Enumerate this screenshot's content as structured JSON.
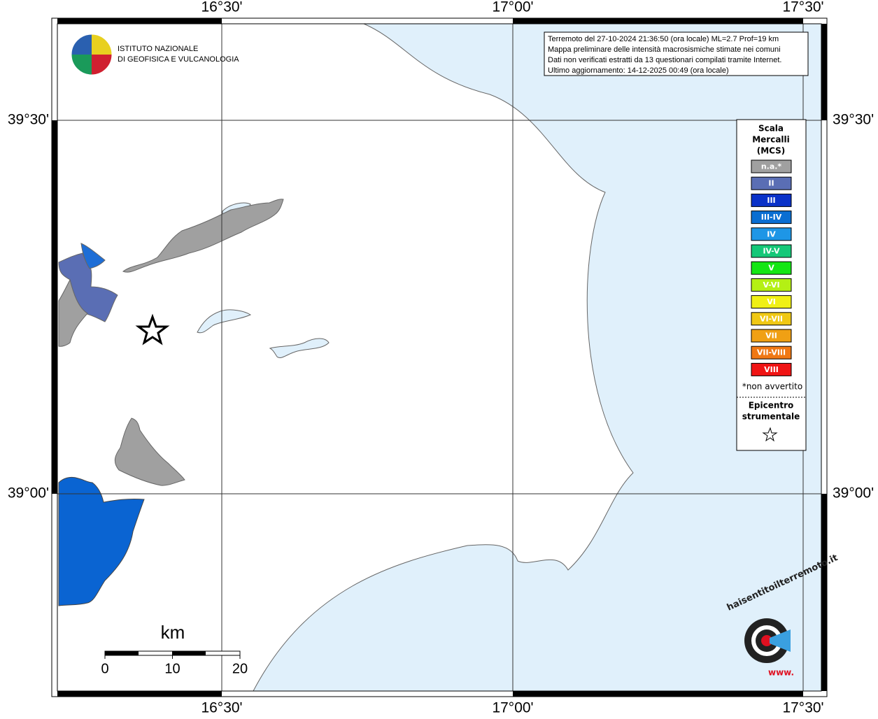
{
  "map": {
    "frame": {
      "top_labels": [
        "16°30'",
        "17°00'",
        "17°30'"
      ],
      "bottom_labels": [
        "16°30'",
        "17°00'",
        "17°30'"
      ],
      "left_labels": [
        "39°30'",
        "39°00'"
      ],
      "right_labels": [
        "39°30'",
        "39°00'"
      ]
    },
    "logo": {
      "lines": [
        "ISTITUTO NAZIONALE",
        "DI GEOFISICA E VULCANOLOGIA"
      ]
    },
    "info": [
      "Terremoto del 27-10-2024 21:36:50 (ora locale) ML=2.7 Prof=19 km",
      "Mappa preliminare delle intensità macrosismiche stimate nei comuni",
      "Dati non verificati estratti da 13 questionari compilati tramite Internet.",
      "Ultimo aggiornamento: 14-12-2025 00:49 (ora locale)"
    ],
    "legend": {
      "title": [
        "Scala",
        "Mercalli",
        "(MCS)"
      ],
      "classes": [
        {
          "label": "n.a.*",
          "color": "#a0a0a0"
        },
        {
          "label": "II",
          "color": "#5a6eb4"
        },
        {
          "label": "III",
          "color": "#0a32c8"
        },
        {
          "label": "III-IV",
          "color": "#0a6ed2"
        },
        {
          "label": "IV",
          "color": "#1e96e6"
        },
        {
          "label": "IV-V",
          "color": "#14c878"
        },
        {
          "label": "V",
          "color": "#14e614"
        },
        {
          "label": "V-VI",
          "color": "#b4f014"
        },
        {
          "label": "VI",
          "color": "#f0f014"
        },
        {
          "label": "VI-VII",
          "color": "#f0c814"
        },
        {
          "label": "VII",
          "color": "#f0a014"
        },
        {
          "label": "VII-VIII",
          "color": "#f07814"
        },
        {
          "label": "VIII",
          "color": "#f01414"
        }
      ],
      "note": "*non avvertito",
      "epicentre": [
        "Epicentro",
        "strumentale"
      ]
    },
    "scale_bar": {
      "unit": "km",
      "ticks": [
        0,
        10,
        20
      ]
    },
    "site_logo": {
      "text": "haisentitoilterremoto.it",
      "prefix": "www."
    }
  }
}
